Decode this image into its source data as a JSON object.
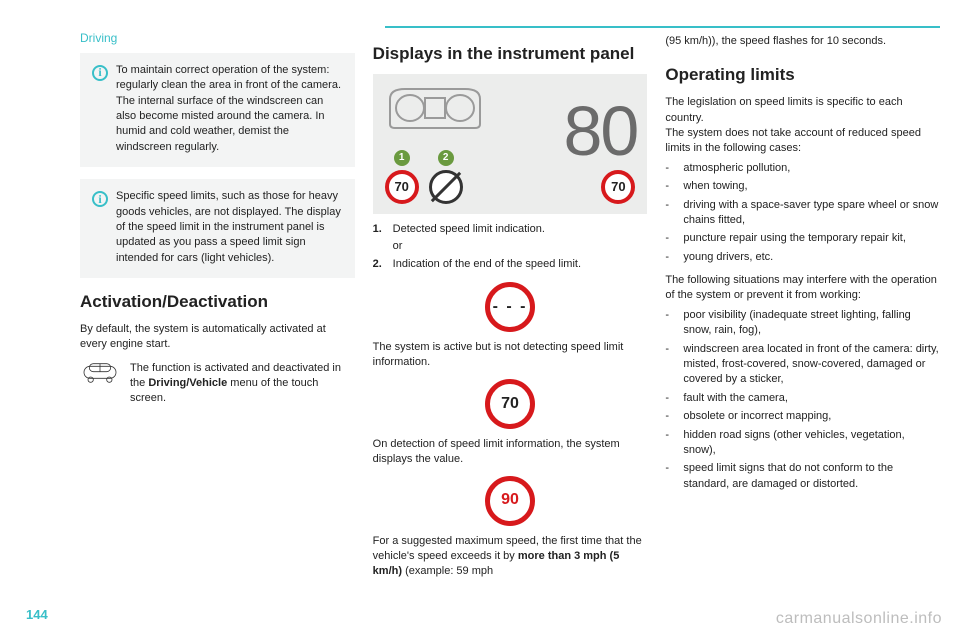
{
  "header": {
    "section": "Driving"
  },
  "col1": {
    "info1": "To maintain correct operation of the system: regularly clean the area in front of the camera.\nThe internal surface of the windscreen can also become misted around the camera. In humid and cold weather, demist the windscreen regularly.",
    "info2": "Specific speed limits, such as those for heavy goods vehicles, are not displayed. The display of the speed limit in the instrument panel is updated as you pass a speed limit sign intended for cars (light vehicles).",
    "h2": "Activation/Deactivation",
    "p1": "By default, the system is automatically activated at every engine start.",
    "car_text_pre": "The function is activated and deactivated in the ",
    "car_text_bold": "Driving/Vehicle",
    "car_text_post": " menu of the touch screen."
  },
  "col2": {
    "h2": "Displays in the instrument panel",
    "big": "80",
    "sign1": "70",
    "sign_right": "70",
    "badge1": "1",
    "badge2": "2",
    "list": [
      {
        "n": "1.",
        "t": "Detected speed limit indication."
      },
      {
        "n": "",
        "t": "or"
      },
      {
        "n": "2.",
        "t": "Indication of the end of the speed limit."
      }
    ],
    "dashes": "- - -",
    "p2": "The system is active but is not detecting speed limit information.",
    "sign70": "70",
    "p3": "On detection of speed limit information, the system displays the value.",
    "sign90": "90",
    "p4_pre": "For a suggested maximum speed, the first time that the vehicle's speed exceeds it by ",
    "p4_bold": "more than 3 mph (5 km/h)",
    "p4_post": " (example: 59 mph"
  },
  "col3": {
    "cont": "(95 km/h)), the speed flashes for 10 seconds.",
    "h2": "Operating limits",
    "p1": "The legislation on speed limits is specific to each country.",
    "p2": "The system does not take account of reduced speed limits in the following cases:",
    "bullets1": [
      "atmospheric pollution,",
      "when towing,",
      "driving with a space-saver type spare wheel or snow chains fitted,",
      "puncture repair using the temporary repair kit,",
      "young drivers, etc."
    ],
    "p3": "The following situations may interfere with the operation of the system or prevent it from working:",
    "bullets2": [
      "poor visibility (inadequate street lighting, falling snow, rain, fog),",
      "windscreen area located in front of the camera: dirty, misted, frost-covered, snow-covered, damaged or covered by a sticker,",
      "fault with the camera,",
      "obsolete or incorrect mapping,",
      "hidden road signs (other vehicles, vegetation, snow),",
      "speed limit signs that do not conform to the standard, are damaged or distorted."
    ]
  },
  "footer": {
    "page": "144",
    "watermark": "carmanualsonline.info"
  },
  "colors": {
    "accent": "#38bfc8",
    "red": "#d7191c",
    "badge": "#6a9a3f"
  }
}
